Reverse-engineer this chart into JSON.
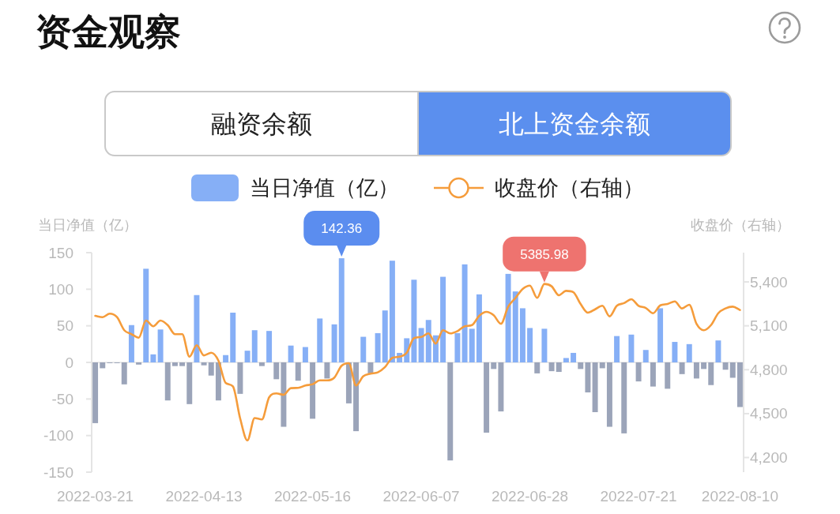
{
  "chart_data": {
    "type": "bar",
    "title": "资金观察",
    "ylabel": "当日净值（亿）",
    "y2label": "收盘价（右轴）",
    "annotations": [
      "融资余额",
      "北上资金余额"
    ],
    "legend": "top",
    "line_style": "solid",
    "categories": [
      "2022-03-21",
      null,
      null,
      null,
      null,
      null,
      null,
      null,
      null,
      null,
      null,
      null,
      null,
      null,
      null,
      "2022-04-13",
      null,
      null,
      null,
      null,
      null,
      null,
      null,
      null,
      null,
      null,
      null,
      null,
      null,
      null,
      "2022-05-16",
      null,
      null,
      null,
      null,
      null,
      null,
      null,
      null,
      null,
      null,
      null,
      null,
      null,
      null,
      "2022-06-07",
      null,
      null,
      null,
      null,
      null,
      null,
      null,
      null,
      null,
      null,
      null,
      null,
      null,
      null,
      "2022-06-28",
      null,
      null,
      null,
      null,
      null,
      null,
      null,
      null,
      null,
      null,
      null,
      null,
      null,
      null,
      "2022-07-21",
      null,
      null,
      null,
      null,
      null,
      null,
      null,
      null,
      null,
      null,
      null,
      null,
      null,
      "2022-08-10"
    ],
    "series": [
      {
        "name": "当日净值（亿）",
        "color": "#86aff6",
        "values": [
          -83,
          -8,
          -1,
          -1,
          -30,
          51,
          -3,
          128,
          11,
          45,
          -52,
          -5,
          -5,
          -57,
          92,
          -4,
          -18,
          -52,
          10,
          68,
          -43,
          16,
          44,
          -5,
          43,
          -23,
          -88,
          23,
          -25,
          21,
          -77,
          60,
          -22,
          52,
          142.36,
          -56,
          -94,
          35,
          -15,
          40,
          71,
          139,
          13,
          33,
          113,
          47,
          58,
          37,
          117,
          -134,
          40,
          134,
          46,
          93,
          -96,
          -9,
          -67,
          121,
          97,
          74,
          47,
          -15,
          46,
          -12,
          -13,
          6,
          13,
          -9,
          -41,
          -68,
          -8,
          -88,
          36,
          -97,
          38,
          -26,
          17,
          -33,
          74,
          -36,
          28,
          -16,
          25,
          -22,
          -9,
          -31,
          30,
          -10,
          -21,
          -61
        ],
        "colors": [
          "#9ba4b9",
          "#9ba4b9",
          "#9ba4b9",
          "#9ba4b9",
          "#9ba4b9",
          "#86aff6",
          "#9ba4b9",
          "#86aff6",
          "#86aff6",
          "#86aff6",
          "#9ba4b9",
          "#9ba4b9",
          "#9ba4b9",
          "#9ba4b9",
          "#86aff6",
          "#9ba4b9",
          "#9ba4b9",
          "#9ba4b9",
          "#86aff6",
          "#86aff6",
          "#9ba4b9",
          "#86aff6",
          "#86aff6",
          "#9ba4b9",
          "#86aff6",
          "#9ba4b9",
          "#9ba4b9",
          "#86aff6",
          "#9ba4b9",
          "#86aff6",
          "#9ba4b9",
          "#86aff6",
          "#9ba4b9",
          "#86aff6",
          "#86aff6",
          "#9ba4b9",
          "#9ba4b9",
          "#86aff6",
          "#9ba4b9",
          "#86aff6",
          "#86aff6",
          "#86aff6",
          "#86aff6",
          "#86aff6",
          "#86aff6",
          "#86aff6",
          "#86aff6",
          "#86aff6",
          "#86aff6",
          "#9ba4b9",
          "#86aff6",
          "#86aff6",
          "#86aff6",
          "#86aff6",
          "#9ba4b9",
          "#9ba4b9",
          "#9ba4b9",
          "#86aff6",
          "#86aff6",
          "#86aff6",
          "#86aff6",
          "#9ba4b9",
          "#86aff6",
          "#9ba4b9",
          "#9ba4b9",
          "#86aff6",
          "#86aff6",
          "#9ba4b9",
          "#9ba4b9",
          "#9ba4b9",
          "#9ba4b9",
          "#9ba4b9",
          "#86aff6",
          "#9ba4b9",
          "#86aff6",
          "#9ba4b9",
          "#86aff6",
          "#9ba4b9",
          "#86aff6",
          "#9ba4b9",
          "#86aff6",
          "#9ba4b9",
          "#86aff6",
          "#9ba4b9",
          "#9ba4b9",
          "#9ba4b9",
          "#86aff6",
          "#9ba4b9",
          "#9ba4b9",
          "#9ba4b9"
        ],
        "value_labels": [
          null,
          null,
          null,
          null,
          null,
          null,
          null,
          null,
          null,
          null,
          null,
          null,
          null,
          null,
          null,
          null,
          null,
          null,
          null,
          null,
          null,
          null,
          null,
          null,
          null,
          null,
          null,
          null,
          null,
          null,
          null,
          null,
          null,
          null,
          "142.36",
          null,
          null,
          null,
          null,
          null,
          null,
          null,
          null,
          null,
          null,
          null,
          null,
          null,
          null,
          null,
          null,
          null,
          null,
          null,
          null,
          null,
          null,
          null,
          null,
          null,
          null,
          null,
          null,
          null,
          null,
          null,
          null,
          null,
          null,
          null,
          null,
          null,
          null,
          null,
          null,
          null,
          null,
          null,
          null,
          null,
          null,
          null,
          null,
          null,
          null,
          null,
          null,
          null,
          null,
          null
        ]
      },
      {
        "name": "收盘价（右轴）",
        "type": "line",
        "axis": "y2",
        "color": "#f59c3b",
        "values": [
          5168,
          5159,
          5183,
          5159,
          5070,
          5043,
          5019,
          5136,
          5097,
          5136,
          5105,
          5043,
          5043,
          4889,
          4967,
          4898,
          4916,
          4862,
          4710,
          4686,
          4467,
          4317,
          4470,
          4460,
          4611,
          4638,
          4629,
          4674,
          4676,
          4692,
          4701,
          4727,
          4727,
          4746,
          4827,
          4845,
          4692,
          4755,
          4773,
          4782,
          4818,
          4881,
          4889,
          4916,
          5016,
          5024,
          5048,
          4979,
          5070,
          5048,
          5064,
          5097,
          5105,
          5168,
          5195,
          5172,
          5114,
          5231,
          5290,
          5352,
          5375,
          5291,
          5385.98,
          5370,
          5309,
          5339,
          5330,
          5249,
          5190,
          5213,
          5237,
          5165,
          5237,
          5255,
          5282,
          5237,
          5222,
          5186,
          5240,
          5249,
          5267,
          5219,
          5244,
          5114,
          5070,
          5105,
          5186,
          5219,
          5231,
          5208
        ],
        "value_labels": [
          null,
          null,
          null,
          null,
          null,
          null,
          null,
          null,
          null,
          null,
          null,
          null,
          null,
          null,
          null,
          null,
          null,
          null,
          null,
          null,
          null,
          null,
          null,
          null,
          null,
          null,
          null,
          null,
          null,
          null,
          null,
          null,
          null,
          null,
          null,
          null,
          null,
          null,
          null,
          null,
          null,
          null,
          null,
          null,
          null,
          null,
          null,
          null,
          null,
          null,
          null,
          null,
          null,
          null,
          null,
          null,
          null,
          null,
          null,
          null,
          null,
          null,
          "5385.98",
          null,
          null,
          null,
          null,
          null,
          null,
          null,
          null,
          null,
          null,
          null,
          null,
          null,
          null,
          null,
          null,
          null,
          null,
          null,
          null,
          null,
          null,
          null,
          null,
          null,
          null,
          null
        ]
      }
    ],
    "ylim": [
      -150,
      150
    ],
    "yticks": [
      -150,
      -100,
      -50,
      0,
      50,
      100,
      150
    ],
    "y2lim": [
      4100,
      5600
    ],
    "y2ticks": [
      {
        "value": 4200,
        "label": "4,200"
      },
      {
        "value": 4500,
        "label": "4,500"
      },
      {
        "value": 4800,
        "label": "4,800"
      },
      {
        "value": 5100,
        "label": "5,100"
      },
      {
        "value": 5400,
        "label": "5,400"
      }
    ],
    "ref_lines": [
      {
        "axis": "y",
        "value": 0,
        "color": "#e3e3e3"
      }
    ]
  }
}
